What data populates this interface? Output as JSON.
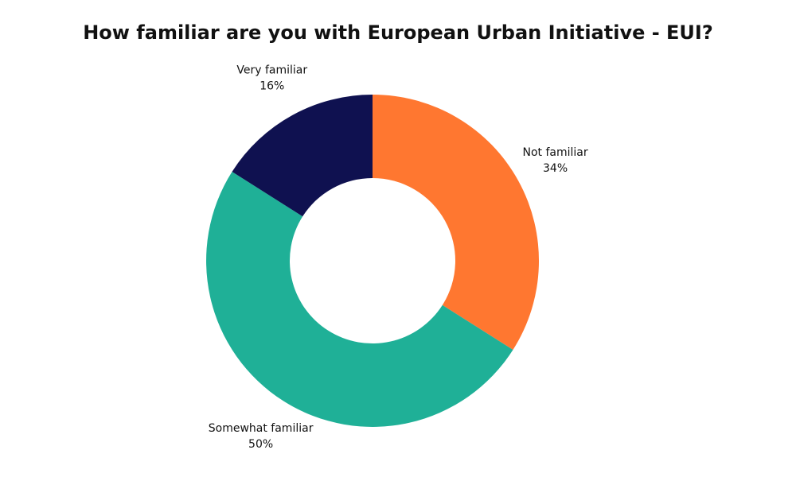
{
  "chart_data": {
    "type": "pie",
    "title": "How familiar are you with European Urban Initiative - EUI?",
    "categories": [
      "Not familiar",
      "Somewhat familiar",
      "Very familiar"
    ],
    "values": [
      34,
      50,
      16
    ],
    "value_labels": [
      "34%",
      "50%",
      "16%"
    ],
    "colors": [
      "#ff7730",
      "#1fb097",
      "#0f1150"
    ],
    "donut": true
  }
}
